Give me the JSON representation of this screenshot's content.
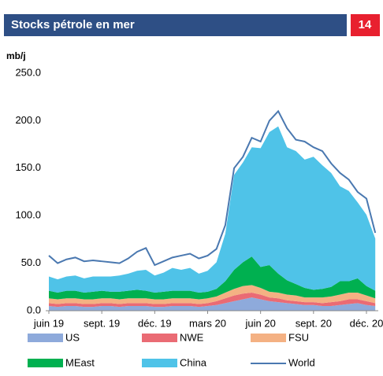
{
  "chart_data": {
    "type": "stacked-area-line",
    "title": "Stocks pétrole en mer",
    "page_number": "14",
    "y_label": "mb/j",
    "categories": [
      "juin 19",
      null,
      null,
      null,
      null,
      null,
      "sept. 19",
      null,
      null,
      null,
      null,
      null,
      "déc. 19",
      null,
      null,
      null,
      null,
      null,
      "mars 20",
      null,
      null,
      null,
      null,
      null,
      "juin 20",
      null,
      null,
      null,
      null,
      null,
      "sept. 20",
      null,
      null,
      null,
      null,
      null,
      "déc. 20",
      null
    ],
    "ylim": [
      0,
      250
    ],
    "yticks": [
      {
        "value": 0,
        "label": "0.0"
      },
      {
        "value": 50,
        "label": "50.0"
      },
      {
        "value": 100,
        "label": "100.0"
      },
      {
        "value": 150,
        "label": "150.0"
      },
      {
        "value": 200,
        "label": "200.0"
      },
      {
        "value": 250,
        "label": "250.0"
      }
    ],
    "grid": false,
    "series": [
      {
        "name": "US",
        "color": "#8eaadb",
        "kind": "area",
        "values": [
          5,
          4,
          5,
          5,
          4,
          4,
          5,
          5,
          4,
          5,
          5,
          5,
          4,
          4,
          5,
          5,
          5,
          4,
          5,
          6,
          8,
          10,
          12,
          14,
          12,
          10,
          9,
          8,
          7,
          6,
          6,
          5,
          5,
          6,
          7,
          8,
          6,
          5
        ]
      },
      {
        "name": "NWE",
        "color": "#ea6b74",
        "kind": "area",
        "values": [
          3,
          3,
          3,
          3,
          3,
          3,
          3,
          3,
          3,
          3,
          3,
          3,
          3,
          3,
          3,
          3,
          3,
          3,
          3,
          4,
          5,
          6,
          6,
          5,
          5,
          4,
          4,
          3,
          3,
          3,
          3,
          3,
          4,
          4,
          5,
          4,
          4,
          3
        ]
      },
      {
        "name": "FSU",
        "color": "#f4b183",
        "kind": "area",
        "values": [
          5,
          5,
          5,
          5,
          5,
          5,
          5,
          5,
          5,
          5,
          5,
          5,
          5,
          5,
          5,
          5,
          5,
          5,
          5,
          5,
          6,
          7,
          8,
          8,
          7,
          6,
          6,
          6,
          6,
          5,
          5,
          6,
          6,
          7,
          7,
          7,
          6,
          5
        ]
      },
      {
        "name": "MEast",
        "color": "#00b050",
        "kind": "area",
        "values": [
          8,
          7,
          8,
          8,
          7,
          8,
          8,
          7,
          8,
          8,
          9,
          8,
          7,
          8,
          8,
          8,
          8,
          7,
          7,
          8,
          12,
          20,
          25,
          30,
          22,
          28,
          20,
          15,
          12,
          10,
          8,
          9,
          10,
          14,
          12,
          15,
          10,
          8
        ]
      },
      {
        "name": "China",
        "color": "#4fc3e8",
        "kind": "area",
        "values": [
          15,
          14,
          15,
          16,
          15,
          16,
          15,
          16,
          17,
          18,
          20,
          22,
          18,
          20,
          24,
          22,
          24,
          20,
          22,
          28,
          50,
          100,
          105,
          115,
          125,
          140,
          155,
          140,
          140,
          135,
          140,
          130,
          120,
          100,
          95,
          80,
          75,
          55
        ]
      },
      {
        "name": "World",
        "color": "#4a78b0",
        "kind": "line",
        "values": [
          58,
          50,
          54,
          56,
          52,
          53,
          52,
          51,
          50,
          55,
          62,
          66,
          48,
          52,
          56,
          58,
          60,
          55,
          58,
          65,
          90,
          150,
          162,
          182,
          178,
          200,
          210,
          192,
          180,
          178,
          172,
          168,
          155,
          145,
          138,
          125,
          118,
          82
        ]
      }
    ]
  }
}
